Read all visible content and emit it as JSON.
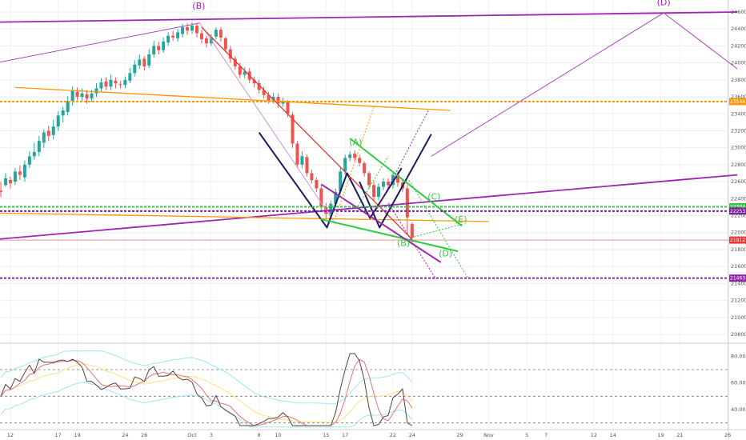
{
  "chart_data": {
    "type": "candlestick",
    "grid": true,
    "price_axis": {
      "ticks": [
        20800,
        21000,
        21200,
        21400,
        21600,
        21800,
        22000,
        22200,
        22400,
        22600,
        22800,
        23000,
        23200,
        23400,
        23600,
        23800,
        24000,
        24200,
        24400,
        24600
      ],
      "tick_labels": [
        "20800.0",
        "21000.0",
        "21200.0",
        "21400.0",
        "21600.0",
        "21800.0",
        "22000.0",
        "22200.0",
        "22400.0",
        "22600.0",
        "22800.0",
        "23000.0",
        "23200.0",
        "23400.0",
        "23600.0",
        "23800.0",
        "24000.0",
        "24200.0",
        "24400.0",
        "24600.0"
      ],
      "range": [
        20780,
        24700
      ]
    },
    "time_axis": {
      "labels": [
        "12",
        "17",
        "19",
        "24",
        "26",
        "Oct",
        "3",
        "8",
        "10",
        "15",
        "17",
        "22",
        "24",
        "29",
        "Nov",
        "5",
        "7",
        "12",
        "14",
        "19",
        "21",
        "26"
      ],
      "label_day_index": [
        -19,
        -14,
        -12,
        -7,
        -5,
        0,
        2,
        7,
        9,
        14,
        16,
        21,
        23,
        28,
        31,
        35,
        37,
        42,
        44,
        49,
        51,
        56
      ],
      "range_day_index": [
        -20.5,
        57
      ]
    },
    "price_levels": [
      {
        "value": 23544.0,
        "label": "23544.0",
        "color": "#ff9800",
        "style": "dotted"
      },
      {
        "value": 22304,
        "label": "22304.0",
        "color": "#2ecc40",
        "style": "dotted"
      },
      {
        "value": 22253.5,
        "label": "22253.5",
        "color": "#7b1fa2",
        "style": "dotted"
      },
      {
        "value": 21912.0,
        "label": "21912.0",
        "color": "#e53935",
        "style": "solid"
      },
      {
        "value": 21463.0,
        "label": "21463.0",
        "color": "#8e24aa",
        "style": "dotted"
      }
    ],
    "wave_labels": [
      {
        "text": "(B)",
        "day": 0.7,
        "price": 24640,
        "color": "#9c27b0"
      },
      {
        "text": "(D)",
        "day": 49.3,
        "price": 24680,
        "color": "#9c27b0"
      },
      {
        "text": "(A)",
        "day": 17.1,
        "price": 23030,
        "color": "#2ecc40"
      },
      {
        "text": "(C)",
        "day": 25.3,
        "price": 22390,
        "color": "#2ecc40"
      },
      {
        "text": "(E)",
        "day": 28.1,
        "price": 22120,
        "color": "#2ecc40"
      },
      {
        "text": "(B)",
        "day": 22.1,
        "price": 21840,
        "color": "#2ecc40"
      },
      {
        "text": "(D)",
        "day": 26.5,
        "price": 21720,
        "color": "#2ecc40"
      }
    ],
    "trend_lines": [
      {
        "name": "upper-purple-channel",
        "points": [
          [
            -20.5,
            24480
          ],
          [
            57,
            24600
          ]
        ],
        "color": "#9c27b0",
        "width": 1.8
      },
      {
        "name": "lower-purple-channel",
        "points": [
          [
            -20.5,
            21920
          ],
          [
            57,
            22680
          ]
        ],
        "color": "#9c27b0",
        "width": 1.8
      },
      {
        "name": "projection-to-D",
        "points": [
          [
            -20.5,
            24000
          ],
          [
            0.8,
            24470
          ]
        ],
        "color": "#ab47bc",
        "width": 1
      },
      {
        "name": "projection-B-to-A",
        "points": [
          [
            0.8,
            24470
          ],
          [
            15,
            22100
          ]
        ],
        "color": "#ce93d8",
        "width": 1
      },
      {
        "name": "projection-up-to-D",
        "points": [
          [
            25,
            22900
          ],
          [
            49.3,
            24590
          ],
          [
            57,
            23930
          ]
        ],
        "color": "#ab47bc",
        "width": 1
      },
      {
        "name": "orange-resistance",
        "points": [
          [
            -18.5,
            23710
          ],
          [
            27,
            23440
          ]
        ],
        "color": "#ff9800",
        "width": 1.3
      },
      {
        "name": "orange-support",
        "points": [
          [
            -20.5,
            22230
          ],
          [
            31,
            22130
          ]
        ],
        "color": "#ff9800",
        "width": 1.3
      },
      {
        "name": "red-downtrend",
        "points": [
          [
            1,
            24420
          ],
          [
            23,
            21920
          ]
        ],
        "color": "#e53935",
        "width": 1.3
      },
      {
        "name": "black-W",
        "points": [
          [
            7,
            23180
          ],
          [
            14.1,
            22060
          ],
          [
            16.2,
            22700
          ],
          [
            18.6,
            22170
          ],
          [
            21.9,
            22760
          ]
        ],
        "color": "#1a1a5e",
        "width": 2
      },
      {
        "name": "black-V2",
        "points": [
          [
            17.5,
            22600
          ],
          [
            19.6,
            22060
          ],
          [
            25,
            23160
          ]
        ],
        "color": "#1a1a5e",
        "width": 2
      },
      {
        "name": "green-upper",
        "points": [
          [
            16.5,
            23110
          ],
          [
            28.2,
            22080
          ]
        ],
        "color": "#2ecc40",
        "width": 2
      },
      {
        "name": "green-lower",
        "points": [
          [
            13.4,
            22160
          ],
          [
            27.8,
            21780
          ]
        ],
        "color": "#2ecc40",
        "width": 2
      },
      {
        "name": "purple-falling",
        "points": [
          [
            13.5,
            22570
          ],
          [
            26,
            21650
          ]
        ],
        "color": "#9c27b0",
        "width": 2
      }
    ],
    "indicator": {
      "ticks": [
        40,
        60,
        80
      ],
      "tick_labels": [
        "40.0000",
        "60.0000",
        "80.0000"
      ],
      "range": [
        25,
        85
      ],
      "dashed_levels": [
        70,
        50,
        30
      ]
    },
    "candles": [
      [
        -20.0,
        22495,
        22480,
        22600,
        22420
      ],
      [
        -19.5,
        22560,
        22640,
        22700,
        22540
      ],
      [
        -19.0,
        22620,
        22580,
        22660,
        22520
      ],
      [
        -18.5,
        22600,
        22720,
        22760,
        22560
      ],
      [
        -18.0,
        22720,
        22680,
        22790,
        22620
      ],
      [
        -17.5,
        22650,
        22800,
        22850,
        22600
      ],
      [
        -17.0,
        22800,
        22900,
        22960,
        22760
      ],
      [
        -16.5,
        22900,
        22950,
        23060,
        22860
      ],
      [
        -16.0,
        22950,
        23080,
        23140,
        22900
      ],
      [
        -15.5,
        23060,
        23180,
        23220,
        23000
      ],
      [
        -15.0,
        23200,
        23140,
        23260,
        23080
      ],
      [
        -14.5,
        23150,
        23250,
        23330,
        23100
      ],
      [
        -14.0,
        23250,
        23380,
        23430,
        23200
      ],
      [
        -13.5,
        23380,
        23440,
        23480,
        23300
      ],
      [
        -13.0,
        23420,
        23550,
        23610,
        23380
      ],
      [
        -12.5,
        23550,
        23680,
        23720,
        23500
      ],
      [
        -12.0,
        23660,
        23600,
        23710,
        23560
      ],
      [
        -11.5,
        23600,
        23640,
        23700,
        23550
      ],
      [
        -11.0,
        23630,
        23580,
        23680,
        23520
      ],
      [
        -10.5,
        23580,
        23640,
        23680,
        23540
      ],
      [
        -10.0,
        23640,
        23700,
        23760,
        23600
      ],
      [
        -9.5,
        23700,
        23770,
        23820,
        23660
      ],
      [
        -9.0,
        23780,
        23720,
        23830,
        23680
      ],
      [
        -8.5,
        23720,
        23800,
        23860,
        23680
      ],
      [
        -8.0,
        23790,
        23760,
        23830,
        23700
      ],
      [
        -7.5,
        23750,
        23740,
        23790,
        23700
      ],
      [
        -7.0,
        23740,
        23800,
        23840,
        23700
      ],
      [
        -6.5,
        23790,
        23880,
        23940,
        23760
      ],
      [
        -6.0,
        23880,
        23980,
        24030,
        23840
      ],
      [
        -5.5,
        23970,
        24040,
        24100,
        23930
      ],
      [
        -5.0,
        24050,
        23960,
        24080,
        23910
      ],
      [
        -4.5,
        23970,
        24100,
        24160,
        23940
      ],
      [
        -4.0,
        24100,
        24200,
        24260,
        24060
      ],
      [
        -3.5,
        24200,
        24150,
        24250,
        24100
      ],
      [
        -3.0,
        24150,
        24250,
        24300,
        24120
      ],
      [
        -2.5,
        24240,
        24320,
        24360,
        24200
      ],
      [
        -2.0,
        24320,
        24300,
        24380,
        24260
      ],
      [
        -1.5,
        24290,
        24360,
        24400,
        24250
      ],
      [
        -1.0,
        24340,
        24420,
        24460,
        24300
      ],
      [
        -0.5,
        24420,
        24380,
        24470,
        24330
      ],
      [
        0.0,
        24380,
        24440,
        24480,
        24340
      ],
      [
        0.5,
        24440,
        24350,
        24470,
        24300
      ],
      [
        1.0,
        24350,
        24280,
        24390,
        24230
      ],
      [
        1.5,
        24290,
        24230,
        24320,
        24180
      ],
      [
        2.0,
        24230,
        24300,
        24340,
        24200
      ],
      [
        2.5,
        24310,
        24390,
        24420,
        24280
      ],
      [
        3.0,
        24390,
        24300,
        24420,
        24250
      ],
      [
        3.5,
        24290,
        24160,
        24310,
        24120
      ],
      [
        4.0,
        24160,
        24050,
        24200,
        24000
      ],
      [
        4.5,
        24050,
        23960,
        24080,
        23920
      ],
      [
        5.0,
        23960,
        23860,
        24000,
        23820
      ],
      [
        5.5,
        23860,
        23900,
        23950,
        23820
      ],
      [
        6.0,
        23900,
        23800,
        23940,
        23760
      ],
      [
        6.5,
        23800,
        23760,
        23840,
        23710
      ],
      [
        7.0,
        23760,
        23680,
        23800,
        23640
      ],
      [
        7.5,
        23680,
        23620,
        23720,
        23580
      ],
      [
        8.0,
        23620,
        23560,
        23660,
        23520
      ],
      [
        8.5,
        23560,
        23600,
        23650,
        23520
      ],
      [
        9.0,
        23600,
        23520,
        23640,
        23470
      ],
      [
        9.5,
        23520,
        23540,
        23590,
        23480
      ],
      [
        10.0,
        23540,
        23400,
        23560,
        23360
      ],
      [
        10.5,
        23390,
        23050,
        23420,
        23000
      ],
      [
        11.0,
        23050,
        22800,
        23080,
        22760
      ],
      [
        11.5,
        22800,
        22900,
        22960,
        22760
      ],
      [
        12.0,
        22890,
        22700,
        22920,
        22660
      ],
      [
        12.5,
        22700,
        22620,
        22740,
        22580
      ],
      [
        13.0,
        22620,
        22520,
        22650,
        22480
      ],
      [
        13.5,
        22520,
        22300,
        22560,
        22260
      ],
      [
        14.0,
        22300,
        22220,
        22350,
        22160
      ],
      [
        14.5,
        22220,
        22340,
        22380,
        22190
      ],
      [
        15.0,
        22340,
        22480,
        22520,
        22300
      ],
      [
        15.5,
        22490,
        22720,
        22760,
        22460
      ],
      [
        16.0,
        22720,
        22880,
        22920,
        22680
      ],
      [
        16.5,
        22880,
        22920,
        22960,
        22840
      ],
      [
        17.0,
        22930,
        22880,
        22970,
        22840
      ],
      [
        17.5,
        22880,
        22820,
        22920,
        22780
      ],
      [
        18.0,
        22820,
        22700,
        22840,
        22660
      ],
      [
        18.5,
        22700,
        22560,
        22720,
        22520
      ],
      [
        19.0,
        22560,
        22420,
        22600,
        22380
      ],
      [
        19.5,
        22420,
        22540,
        22580,
        22380
      ],
      [
        20.0,
        22540,
        22600,
        22640,
        22500
      ],
      [
        20.5,
        22600,
        22560,
        22640,
        22520
      ],
      [
        21.0,
        22560,
        22680,
        22720,
        22520
      ],
      [
        21.5,
        22680,
        22590,
        22720,
        22540
      ],
      [
        22.0,
        22590,
        22520,
        22640,
        22480
      ],
      [
        22.5,
        22520,
        22180,
        22560,
        21980
      ],
      [
        23.0,
        22100,
        21940,
        22120,
        21900
      ]
    ]
  }
}
